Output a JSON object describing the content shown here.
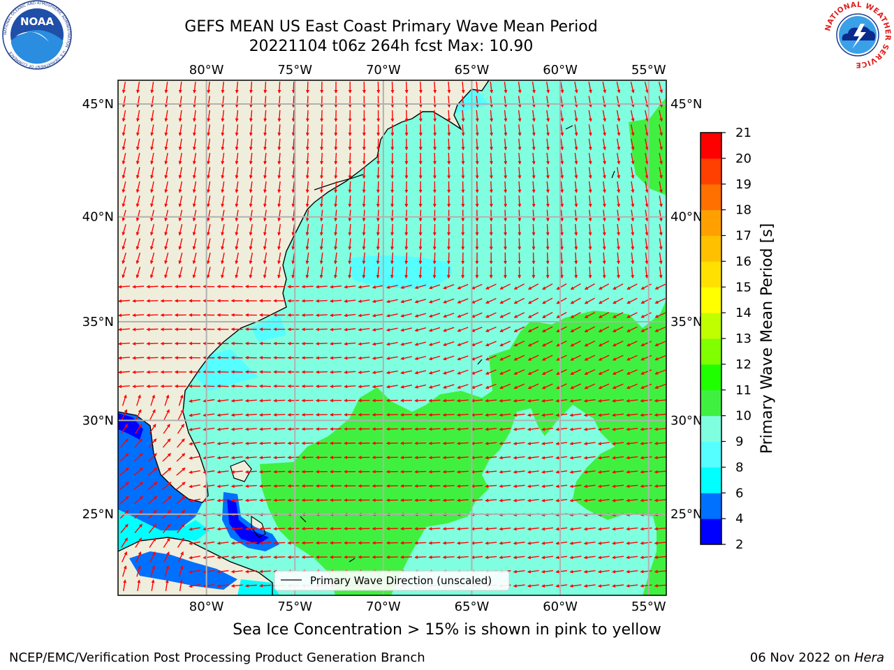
{
  "header": {
    "title_line1": "GEFS MEAN US East Coast Primary Wave Mean Period",
    "title_line2": "20221104 t06z 264h fcst   Max: 10.90"
  },
  "map": {
    "lon_labels": [
      "80°W",
      "75°W",
      "70°W",
      "65°W",
      "60°W",
      "55°W"
    ],
    "lat_labels": [
      "45°N",
      "40°N",
      "35°N",
      "30°N",
      "25°N"
    ],
    "legend_label": "Primary Wave Direction (unscaled)",
    "ocean_color": "#80ffe0",
    "land_color": "#efeedc",
    "arrow_color": "#ff0000",
    "lon_range": [
      -85,
      -54
    ],
    "lat_range": [
      20.5,
      46
    ]
  },
  "colorbar": {
    "label": "Primary Wave Mean Period [s]",
    "ticks": [
      "2",
      "4",
      "6",
      "8",
      "9",
      "10",
      "11",
      "12",
      "13",
      "14",
      "15",
      "16",
      "17",
      "18",
      "19",
      "20",
      "21"
    ],
    "colors": [
      "#0000ff",
      "#0070ff",
      "#00ffff",
      "#55ffff",
      "#80ffe0",
      "#40f040",
      "#20ff00",
      "#80ff00",
      "#c0ff00",
      "#ffff00",
      "#ffe000",
      "#ffc000",
      "#ffa000",
      "#ff7000",
      "#ff4000",
      "#ff0000"
    ]
  },
  "caption": "Sea Ice Concentration > 15% is shown in pink to yellow",
  "footer": {
    "left": "NCEP/EMC/Verification Post Processing Product Generation Branch",
    "right_date": "06 Nov 2022 on ",
    "right_host": "Hera"
  },
  "logos": {
    "noaa_text": "NOAA",
    "noaa_ring": "NATIONAL OCEANIC AND ATMOSPHERIC ADMINISTRATION · U.S. DEPARTMENT OF COMMERCE",
    "nws_ring": "NATIONAL WEATHER SERVICE"
  }
}
